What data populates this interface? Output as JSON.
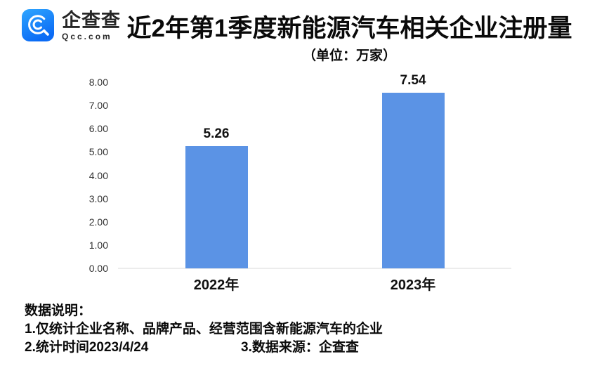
{
  "header": {
    "logo": {
      "icon": "qcc-magnifier-icon",
      "name": "企查查",
      "domain": "Qcc.com",
      "brand_blue_top": "#2fa6ff",
      "brand_blue_bottom": "#0b6bf5"
    },
    "title": "近2年第1季度新能源汽车相关企业注册量",
    "subtitle": "（单位：万家）"
  },
  "chart_data": {
    "type": "bar",
    "title": "近2年第1季度新能源汽车相关企业注册量",
    "unit_label": "（单位：万家）",
    "categories": [
      "2022年",
      "2023年"
    ],
    "values": [
      5.26,
      7.54
    ],
    "value_labels": [
      "5.26",
      "7.54"
    ],
    "xlabel": "",
    "ylabel": "",
    "ylim": [
      0,
      8
    ],
    "ytick_labels": [
      "0.00",
      "1.00",
      "2.00",
      "3.00",
      "4.00",
      "5.00",
      "6.00",
      "7.00",
      "8.00"
    ],
    "bar_color": "#5b93e5",
    "axis_line_color": "#ececec",
    "grid": false,
    "legend": false
  },
  "notes": {
    "heading": "数据说明：",
    "line1": "1.仅统计企业名称、品牌产品、经营范围含新能源汽车的企业",
    "line2a": "2.统计时间2023/4/24",
    "line2b": "3.数据来源：企查查"
  }
}
